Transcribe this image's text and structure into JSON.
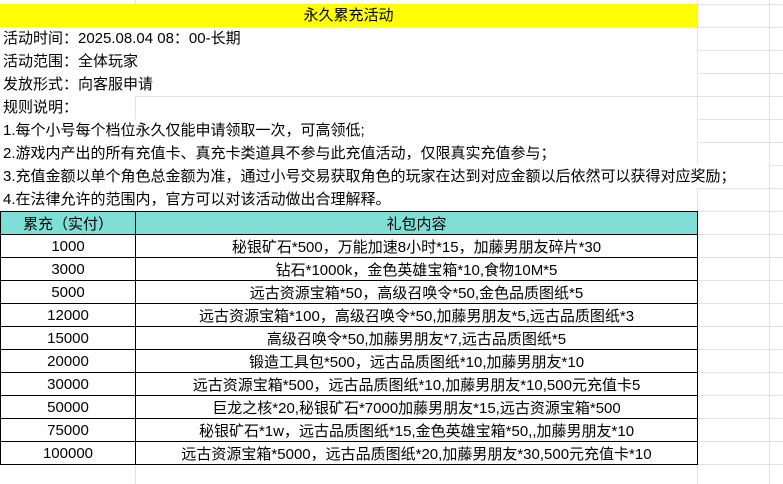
{
  "title": "永久累充活动",
  "info": [
    "活动时间：2025.08.04 08：00-长期",
    "活动范围：全体玩家",
    "发放形式：向客服申请",
    "规则说明：",
    "1.每个小号每个档位永久仅能申请领取一次，可高领低;",
    "2.游戏内产出的所有充值卡、真充卡类道具不参与此充值活动，仅限真实充值参与；",
    "3.充值金额以单个角色总金额为准，通过小号交易获取角色的玩家在达到对应金额以后依然可以获得对应奖励；",
    "4.在法律允许的范围内，官方可以对该活动做出合理解释。"
  ],
  "table": {
    "headers": [
      "累充（实付）",
      "礼包内容"
    ],
    "rows": [
      [
        "1000",
        "秘银矿石*500，万能加速8小时*15，加藤男朋友碎片*30"
      ],
      [
        "3000",
        "钻石*1000k，金色英雄宝箱*10,食物10M*5"
      ],
      [
        "5000",
        "远古资源宝箱*50，高级召唤令*50,金色品质图纸*5"
      ],
      [
        "12000",
        "远古资源宝箱*100，高级召唤令*50,加藤男朋友*5,远古品质图纸*3"
      ],
      [
        "15000",
        "高级召唤令*50,加藤男朋友*7,远古品质图纸*5"
      ],
      [
        "20000",
        "锻造工具包*500，远古品质图纸*10,加藤男朋友*10"
      ],
      [
        "30000",
        "远古资源宝箱*500，远古品质图纸*10,加藤男朋友*10,500元充值卡5"
      ],
      [
        "50000",
        "巨龙之核*20,秘银矿石*7000加藤男朋友*15,远古资源宝箱*500"
      ],
      [
        "75000",
        "秘银矿石*1w，远古品质图纸*15,金色英雄宝箱*50,,加藤男朋友*10"
      ],
      [
        "100000",
        "远古资源宝箱*5000，远古品质图纸*20,加藤男朋友*30,500元充值卡*10"
      ]
    ]
  },
  "colors": {
    "title_bg": "#ffff00",
    "header_bg": "#7fdfd6"
  }
}
